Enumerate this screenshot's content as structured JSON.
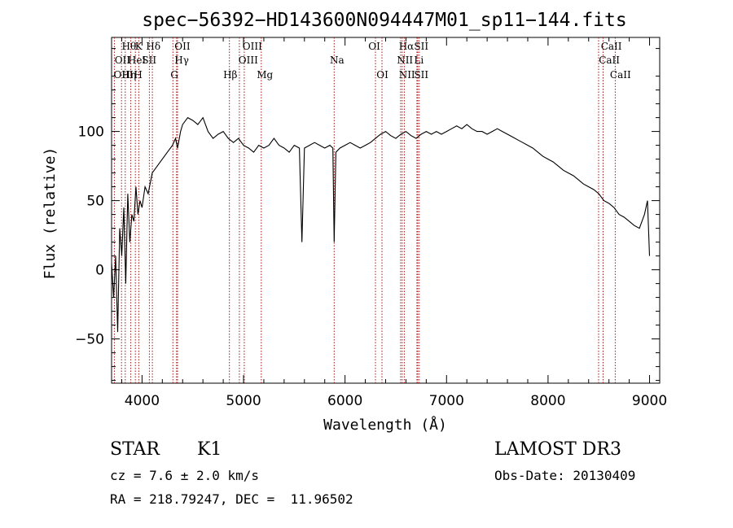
{
  "chart_data": {
    "type": "line",
    "title": "spec−56392−HD143600N094447M01_sp11−144.fits",
    "xlabel": "Wavelength (Å)",
    "ylabel": "Flux (relative)",
    "xlim": [
      3700,
      9100
    ],
    "ylim": [
      -82,
      168
    ],
    "x_ticks": [
      4000,
      5000,
      6000,
      7000,
      8000,
      9000
    ],
    "y_ticks": [
      -50,
      0,
      50,
      100
    ],
    "y_tick_labels": [
      "−50",
      "0",
      "50",
      "100"
    ],
    "grid": false,
    "legend": "none",
    "series": [
      {
        "x": [
          3700,
          3720,
          3740,
          3760,
          3780,
          3800,
          3820,
          3840,
          3860,
          3880,
          3900,
          3920,
          3940,
          3960,
          3980,
          4000,
          4030,
          4060,
          4100,
          4150,
          4200,
          4250,
          4300,
          4330,
          4350,
          4380,
          4400,
          4450,
          4500,
          4550,
          4600,
          4650,
          4700,
          4750,
          4800,
          4850,
          4900,
          4950,
          5000,
          5050,
          5100,
          5150,
          5200,
          5250,
          5300,
          5350,
          5400,
          5450,
          5500,
          5550,
          5575,
          5600,
          5650,
          5700,
          5750,
          5800,
          5850,
          5880,
          5893,
          5910,
          5950,
          6000,
          6050,
          6100,
          6150,
          6200,
          6250,
          6300,
          6350,
          6400,
          6450,
          6500,
          6550,
          6600,
          6650,
          6700,
          6750,
          6800,
          6850,
          6900,
          6950,
          7000,
          7050,
          7100,
          7150,
          7200,
          7250,
          7300,
          7350,
          7400,
          7450,
          7500,
          7550,
          7600,
          7650,
          7700,
          7750,
          7800,
          7850,
          7900,
          7950,
          8000,
          8050,
          8100,
          8150,
          8200,
          8250,
          8300,
          8350,
          8400,
          8450,
          8500,
          8550,
          8600,
          8650,
          8700,
          8750,
          8800,
          8850,
          8900,
          8950,
          8980,
          9000
        ],
        "y": [
          5,
          -20,
          10,
          -45,
          30,
          10,
          45,
          -10,
          55,
          20,
          40,
          35,
          60,
          40,
          50,
          45,
          60,
          55,
          70,
          75,
          80,
          85,
          90,
          95,
          88,
          100,
          105,
          110,
          108,
          105,
          110,
          100,
          95,
          98,
          100,
          95,
          92,
          95,
          90,
          88,
          85,
          90,
          88,
          90,
          95,
          90,
          88,
          85,
          90,
          88,
          20,
          88,
          90,
          92,
          90,
          88,
          90,
          88,
          20,
          85,
          88,
          90,
          92,
          90,
          88,
          90,
          92,
          95,
          98,
          100,
          97,
          95,
          98,
          100,
          97,
          95,
          98,
          100,
          98,
          100,
          98,
          100,
          102,
          104,
          102,
          105,
          102,
          100,
          100,
          98,
          100,
          102,
          100,
          98,
          96,
          94,
          92,
          90,
          88,
          85,
          82,
          80,
          78,
          75,
          72,
          70,
          68,
          65,
          62,
          60,
          58,
          55,
          50,
          48,
          45,
          40,
          38,
          35,
          32,
          30,
          40,
          50,
          10
        ]
      }
    ],
    "line_labels": [
      {
        "text": "Hθ",
        "wave": 3798,
        "row": 0,
        "label_wave": 3800
      },
      {
        "text": "K",
        "wave": 3934,
        "row": 0,
        "label_wave": 3930
      },
      {
        "text": "Hδ",
        "wave": 4102,
        "row": 0,
        "label_wave": 4040
      },
      {
        "text": "OII",
        "wave": 4350,
        "row": 0,
        "label_wave": 4320
      },
      {
        "text": "OIII",
        "wave": 4959,
        "row": 0,
        "label_wave": 4990
      },
      {
        "text": "OI",
        "wave": 6300,
        "row": 0,
        "label_wave": 6230
      },
      {
        "text": "Hα",
        "wave": 6563,
        "row": 0,
        "label_wave": 6530
      },
      {
        "text": "SII",
        "wave": 6717,
        "row": 0,
        "label_wave": 6680
      },
      {
        "text": "CaII",
        "wave": 8498,
        "row": 0,
        "label_wave": 8520
      },
      {
        "text": "OII",
        "wave": 3727,
        "row": 1,
        "label_wave": 3730
      },
      {
        "text": "HeI",
        "wave": 3889,
        "row": 1,
        "label_wave": 3860
      },
      {
        "text": "SII",
        "wave": 4072,
        "row": 1,
        "label_wave": 4000
      },
      {
        "text": "Hγ",
        "wave": 4340,
        "row": 1,
        "label_wave": 4320
      },
      {
        "text": "OIII",
        "wave": 5007,
        "row": 1,
        "label_wave": 4950
      },
      {
        "text": "Na",
        "wave": 5893,
        "row": 1,
        "label_wave": 5850
      },
      {
        "text": "NII",
        "wave": 6548,
        "row": 1,
        "label_wave": 6510
      },
      {
        "text": "Li",
        "wave": 6708,
        "row": 1,
        "label_wave": 6680
      },
      {
        "text": "CaII",
        "wave": 8542,
        "row": 1,
        "label_wave": 8500
      },
      {
        "text": "OIII",
        "wave": 3727,
        "row": 2,
        "label_wave": 3720
      },
      {
        "text": "Hη",
        "wave": 3835,
        "row": 2,
        "label_wave": 3800
      },
      {
        "text": "H",
        "wave": 3968,
        "row": 2,
        "label_wave": 3920
      },
      {
        "text": "G",
        "wave": 4304,
        "row": 2,
        "label_wave": 4280
      },
      {
        "text": "Hβ",
        "wave": 4861,
        "row": 2,
        "label_wave": 4800
      },
      {
        "text": "Mg",
        "wave": 5175,
        "row": 2,
        "label_wave": 5130
      },
      {
        "text": "OI",
        "wave": 6364,
        "row": 2,
        "label_wave": 6310
      },
      {
        "text": "NII",
        "wave": 6584,
        "row": 2,
        "label_wave": 6530
      },
      {
        "text": "SII",
        "wave": 6731,
        "row": 2,
        "label_wave": 6680
      },
      {
        "text": "CaII",
        "wave": 8662,
        "row": 2,
        "label_wave": 8610
      }
    ]
  },
  "info": {
    "object_class": "STAR",
    "subclass": "K1",
    "cz": "cz = 7.6 ± 2.0 km/s",
    "coords": "RA = 218.79247, DEC =  11.96502",
    "survey": "LAMOST DR3",
    "obs_date": "Obs-Date: 20130409"
  }
}
